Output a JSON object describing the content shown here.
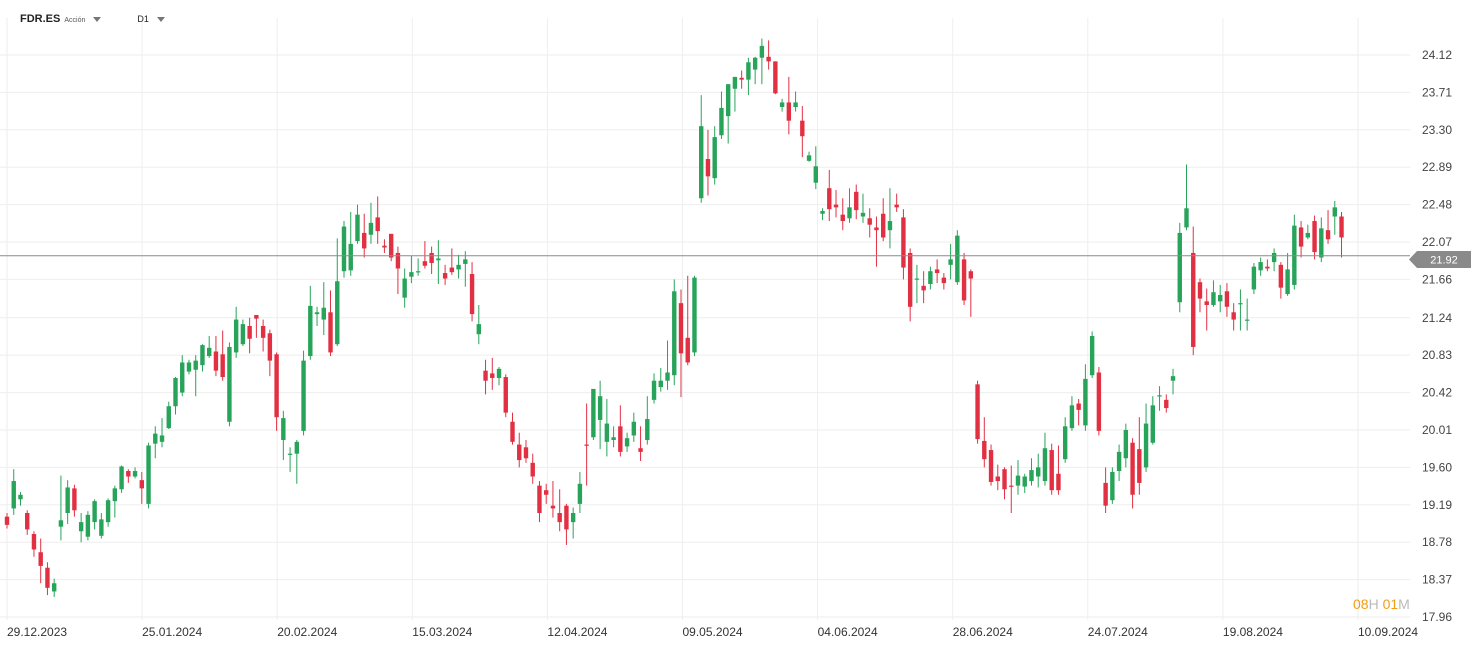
{
  "header": {
    "symbol": "FDR.ES",
    "instrument_type": "Acción",
    "timeframe": "D1"
  },
  "timer": {
    "hours": "08",
    "hours_unit": "H",
    "minutes": "01",
    "minutes_unit": "M"
  },
  "colors": {
    "up": "#27a35a",
    "down": "#e23043",
    "grid": "#eeeeee",
    "price_line": "#8a8a8a",
    "price_tag": "#8a8a8a"
  },
  "chart_data": {
    "type": "candlestick",
    "y_ticks": [
      "24.12",
      "23.71",
      "23.30",
      "22.89",
      "22.48",
      "22.07",
      "21.66",
      "21.24",
      "20.83",
      "20.42",
      "20.01",
      "19.60",
      "19.19",
      "18.78",
      "18.37",
      "17.96"
    ],
    "x_ticks": [
      "29.12.2023",
      "25.01.2024",
      "20.02.2024",
      "15.03.2024",
      "12.04.2024",
      "09.05.2024",
      "04.06.2024",
      "28.06.2024",
      "24.07.2024",
      "19.08.2024",
      "10.09.2024"
    ],
    "ylim": [
      17.96,
      24.12
    ],
    "current_price": "21.92",
    "candles": [
      [
        19.06,
        18.84,
        18.72,
        19.06
      ],
      [
        19.13,
        19.4,
        19.06,
        19.58
      ],
      [
        19.23,
        19.23,
        19.26,
        19.26
      ],
      [
        18.91,
        18.82,
        18.81,
        19.23
      ],
      [
        18.6,
        18.76,
        18.59,
        18.82
      ],
      [
        18.53,
        18.66,
        18.47,
        18.77
      ],
      [
        18.37,
        18.47,
        18.36,
        18.57
      ],
      [
        18.2,
        18.35,
        18.16,
        18.45
      ],
      [
        18.21,
        18.57
      ],
      [
        18.49,
        18.34,
        18.53,
        18.88
      ],
      [
        18.86,
        19.58
      ],
      [
        19.2,
        19.23,
        18.97,
        19.43
      ],
      [
        19.2,
        18.97,
        18.93,
        19.23
      ],
      [
        18.76,
        18.9,
        18.69,
        18.95
      ],
      [
        18.59,
        18.84,
        18.57,
        18.87
      ],
      [
        18.72,
        18.87,
        18.65,
        19.06
      ],
      [
        18.91,
        19.08,
        18.8,
        18.99
      ],
      [
        18.74,
        19.13,
        18.88,
        19.15
      ],
      [
        18.8,
        19.13
      ],
      [
        19.21,
        19.24,
        19.14,
        19.32
      ],
      [
        19.36,
        19.6,
        19.49
      ],
      [
        19.51,
        19.56,
        19.54,
        19.52
      ],
      [
        19.45,
        19.52,
        19.45,
        19.38
      ],
      [
        19.45,
        19.56
      ],
      [
        19.21,
        19.51,
        19.16,
        19.51
      ]
    ]
  }
}
